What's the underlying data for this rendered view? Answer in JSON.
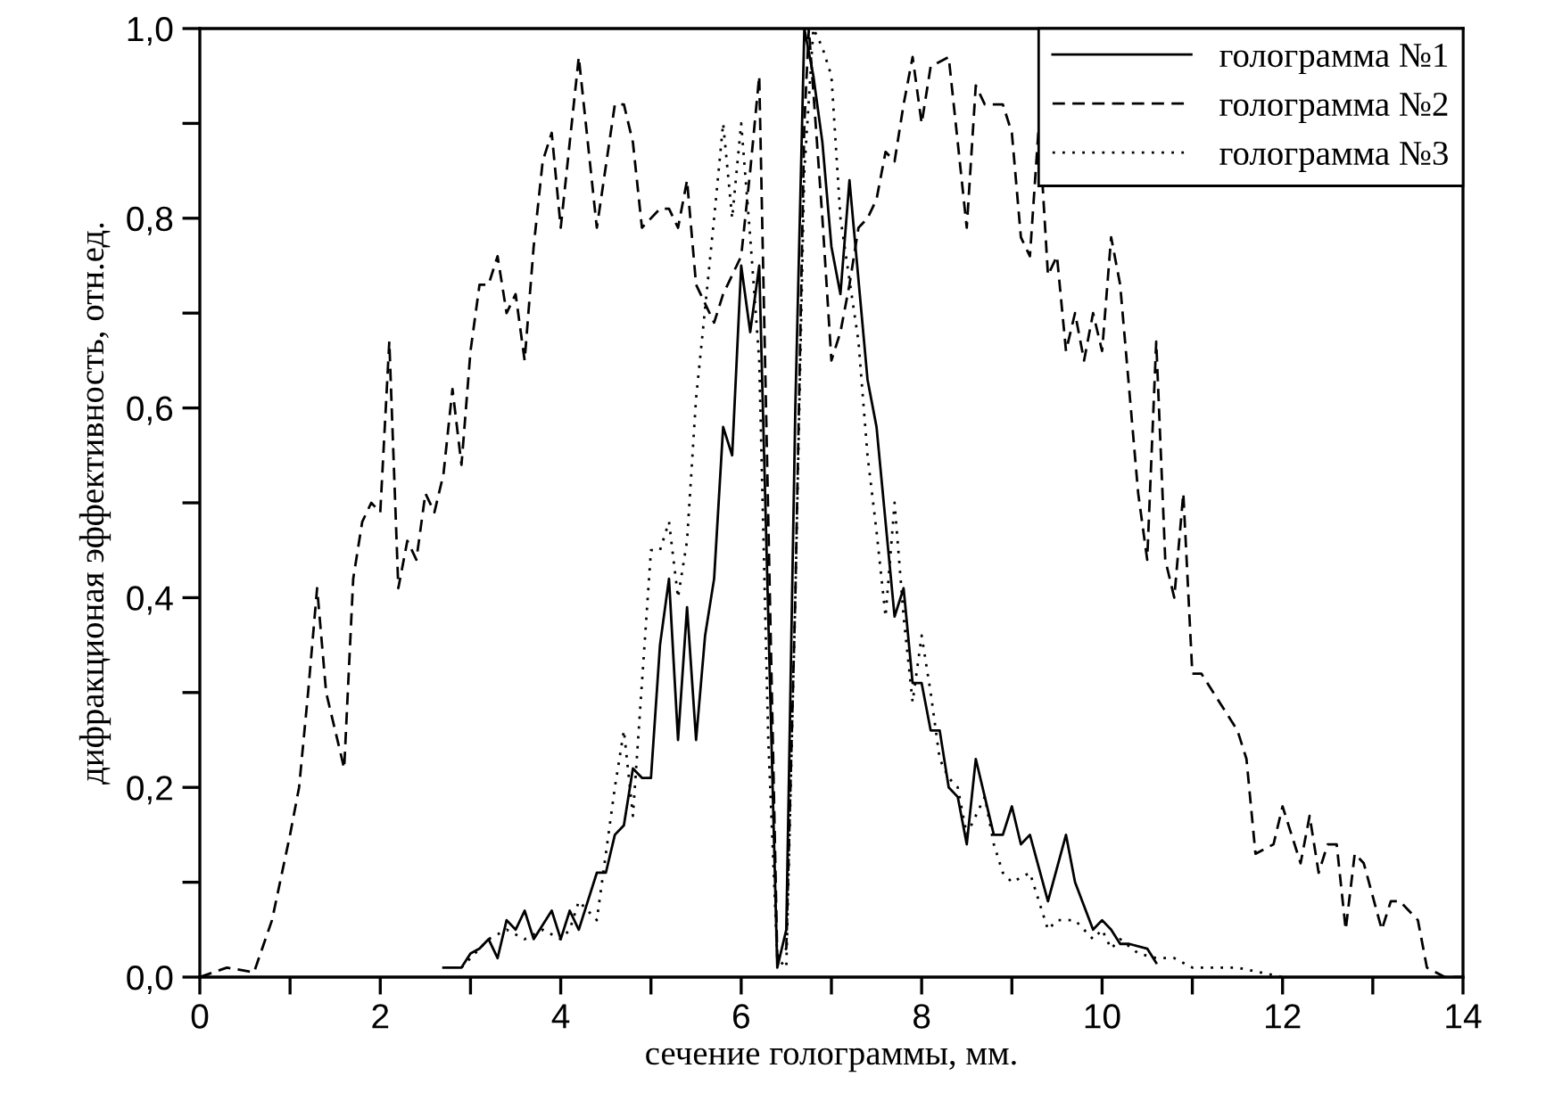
{
  "chart_data": {
    "type": "line",
    "xlabel": "сечение голограммы, мм.",
    "ylabel": "дифракционая эффективность, отн.ед.",
    "xlim": [
      0,
      14
    ],
    "xticks": [
      0,
      {
        "value": 1,
        "label": null
      },
      2,
      {
        "value": 3,
        "label": null
      },
      4,
      {
        "value": 5,
        "label": null
      },
      6,
      {
        "value": 7,
        "label": null
      },
      8,
      {
        "value": 9,
        "label": null
      },
      10,
      {
        "value": 11,
        "label": null
      },
      12,
      {
        "value": 13,
        "label": null
      },
      14
    ],
    "ylim": [
      0,
      1
    ],
    "yticks": [
      {
        "value": 0,
        "label": "0,0"
      },
      {
        "value": 0.1,
        "label": null
      },
      {
        "value": 0.2,
        "label": "0,2"
      },
      {
        "value": 0.3,
        "label": null
      },
      {
        "value": 0.4,
        "label": "0,4"
      },
      {
        "value": 0.5,
        "label": null
      },
      {
        "value": 0.6,
        "label": "0,6"
      },
      {
        "value": 0.7,
        "label": null
      },
      {
        "value": 0.8,
        "label": "0,8"
      },
      {
        "value": 0.9,
        "label": null
      },
      {
        "value": 1.0,
        "label": "1,0"
      }
    ],
    "grid": false,
    "legend": "top right",
    "series": [
      {
        "name": "голограмма №1",
        "color": "#000000",
        "line_style": "solid",
        "x": [
          2.7,
          2.9,
          3.0,
          3.1,
          3.2,
          3.3,
          3.4,
          3.5,
          3.6,
          3.7,
          3.9,
          4.0,
          4.1,
          4.2,
          4.4,
          4.5,
          4.6,
          4.7,
          4.8,
          4.9,
          5.0,
          5.1,
          5.2,
          5.3,
          5.4,
          5.5,
          5.6,
          5.7,
          5.8,
          5.9,
          6.0,
          6.1,
          6.2,
          6.4,
          6.5,
          6.6,
          6.7,
          6.8,
          6.9,
          7.0,
          7.1,
          7.2,
          7.4,
          7.5,
          7.6,
          7.7,
          7.8,
          7.9,
          8.0,
          8.1,
          8.2,
          8.3,
          8.4,
          8.5,
          8.6,
          8.7,
          8.8,
          8.9,
          9.0,
          9.1,
          9.2,
          9.4,
          9.6,
          9.7,
          9.9,
          10.0,
          10.1,
          10.2,
          10.3,
          10.5,
          10.6
        ],
        "values": [
          0.01,
          0.01,
          0.025,
          0.03,
          0.04,
          0.02,
          0.06,
          0.05,
          0.07,
          0.04,
          0.07,
          0.04,
          0.07,
          0.05,
          0.11,
          0.11,
          0.15,
          0.16,
          0.22,
          0.21,
          0.21,
          0.35,
          0.42,
          0.25,
          0.39,
          0.25,
          0.36,
          0.42,
          0.58,
          0.55,
          0.75,
          0.68,
          0.75,
          0.01,
          0.05,
          0.6,
          1.0,
          0.95,
          0.88,
          0.77,
          0.72,
          0.84,
          0.63,
          0.58,
          0.48,
          0.38,
          0.41,
          0.31,
          0.31,
          0.26,
          0.26,
          0.2,
          0.19,
          0.14,
          0.23,
          0.19,
          0.15,
          0.15,
          0.18,
          0.14,
          0.15,
          0.08,
          0.15,
          0.1,
          0.05,
          0.06,
          0.05,
          0.035,
          0.035,
          0.03,
          0.015
        ]
      },
      {
        "name": "голограмма №2",
        "color": "#000000",
        "line_style": "dashed",
        "x": [
          0,
          0.3,
          0.6,
          0.8,
          1.0,
          1.1,
          1.2,
          1.3,
          1.4,
          1.6,
          1.7,
          1.8,
          1.9,
          2.0,
          2.1,
          2.2,
          2.3,
          2.4,
          2.5,
          2.6,
          2.7,
          2.8,
          2.9,
          3.0,
          3.1,
          3.2,
          3.3,
          3.4,
          3.5,
          3.6,
          3.7,
          3.8,
          3.9,
          4.0,
          4.1,
          4.2,
          4.4,
          4.6,
          4.7,
          4.8,
          4.9,
          5.1,
          5.2,
          5.3,
          5.4,
          5.5,
          5.6,
          5.7,
          5.8,
          6.0,
          6.1,
          6.2,
          6.4,
          6.5,
          6.6,
          6.7,
          6.75,
          6.9,
          7.0,
          7.1,
          7.2,
          7.3,
          7.4,
          7.5,
          7.6,
          7.7,
          7.8,
          7.9,
          8.0,
          8.1,
          8.3,
          8.4,
          8.5,
          8.6,
          8.7,
          8.9,
          9.0,
          9.1,
          9.2,
          9.3,
          9.4,
          9.5,
          9.6,
          9.7,
          9.8,
          9.9,
          10.0,
          10.1,
          10.2,
          10.4,
          10.5,
          10.6,
          10.7,
          10.8,
          10.9,
          11.0,
          11.1,
          11.3,
          11.5,
          11.6,
          11.7,
          11.9,
          12.0,
          12.2,
          12.3,
          12.4,
          12.5,
          12.6,
          12.7,
          12.8,
          12.9,
          13.1,
          13.2,
          13.3,
          13.5,
          13.6,
          13.8,
          14.0
        ],
        "values": [
          0.0,
          0.01,
          0.005,
          0.06,
          0.15,
          0.2,
          0.3,
          0.41,
          0.3,
          0.22,
          0.42,
          0.48,
          0.5,
          0.49,
          0.67,
          0.41,
          0.46,
          0.44,
          0.51,
          0.49,
          0.53,
          0.62,
          0.54,
          0.66,
          0.73,
          0.73,
          0.76,
          0.7,
          0.72,
          0.65,
          0.77,
          0.86,
          0.89,
          0.79,
          0.88,
          0.97,
          0.79,
          0.92,
          0.92,
          0.88,
          0.79,
          0.81,
          0.81,
          0.79,
          0.84,
          0.73,
          0.71,
          0.69,
          0.72,
          0.76,
          0.85,
          0.95,
          0.02,
          0.03,
          0.4,
          0.9,
          1.0,
          0.8,
          0.65,
          0.68,
          0.73,
          0.79,
          0.8,
          0.82,
          0.87,
          0.86,
          0.92,
          0.97,
          0.9,
          0.96,
          0.97,
          0.88,
          0.79,
          0.94,
          0.92,
          0.92,
          0.89,
          0.78,
          0.76,
          0.9,
          0.74,
          0.76,
          0.66,
          0.7,
          0.65,
          0.7,
          0.66,
          0.78,
          0.73,
          0.51,
          0.44,
          0.67,
          0.44,
          0.4,
          0.51,
          0.32,
          0.32,
          0.29,
          0.26,
          0.23,
          0.13,
          0.14,
          0.18,
          0.12,
          0.17,
          0.11,
          0.14,
          0.14,
          0.05,
          0.13,
          0.12,
          0.05,
          0.08,
          0.08,
          0.06,
          0.01,
          0.0,
          0.0
        ]
      },
      {
        "name": "голограмма №3",
        "color": "#000000",
        "line_style": "dotted",
        "x": [
          2.9,
          3.0,
          3.2,
          3.4,
          3.6,
          3.8,
          4.0,
          4.1,
          4.2,
          4.3,
          4.4,
          4.5,
          4.6,
          4.7,
          4.8,
          5.0,
          5.1,
          5.2,
          5.3,
          5.4,
          5.5,
          5.7,
          5.8,
          5.9,
          6.0,
          6.1,
          6.2,
          6.3,
          6.4,
          6.5,
          6.6,
          6.7,
          6.8,
          6.9,
          7.0,
          7.1,
          7.3,
          7.4,
          7.5,
          7.6,
          7.7,
          7.8,
          7.9,
          8.0,
          8.1,
          8.2,
          8.3,
          8.4,
          8.5,
          8.7,
          8.8,
          8.9,
          9.0,
          9.2,
          9.4,
          9.5,
          9.7,
          9.9,
          10.0,
          10.1,
          10.2,
          10.4,
          10.6,
          10.8,
          11.0,
          11.5,
          12.0
        ],
        "values": [
          0.01,
          0.02,
          0.04,
          0.05,
          0.04,
          0.05,
          0.04,
          0.05,
          0.08,
          0.07,
          0.06,
          0.13,
          0.2,
          0.26,
          0.17,
          0.45,
          0.45,
          0.48,
          0.4,
          0.46,
          0.61,
          0.8,
          0.9,
          0.8,
          0.9,
          0.78,
          0.65,
          0.25,
          0.02,
          0.01,
          0.4,
          0.85,
          1.0,
          0.98,
          0.95,
          0.8,
          0.67,
          0.55,
          0.47,
          0.38,
          0.5,
          0.38,
          0.29,
          0.36,
          0.3,
          0.23,
          0.21,
          0.2,
          0.15,
          0.19,
          0.14,
          0.11,
          0.1,
          0.11,
          0.05,
          0.06,
          0.06,
          0.04,
          0.05,
          0.03,
          0.04,
          0.025,
          0.02,
          0.02,
          0.01,
          0.01,
          0.0
        ]
      }
    ]
  }
}
